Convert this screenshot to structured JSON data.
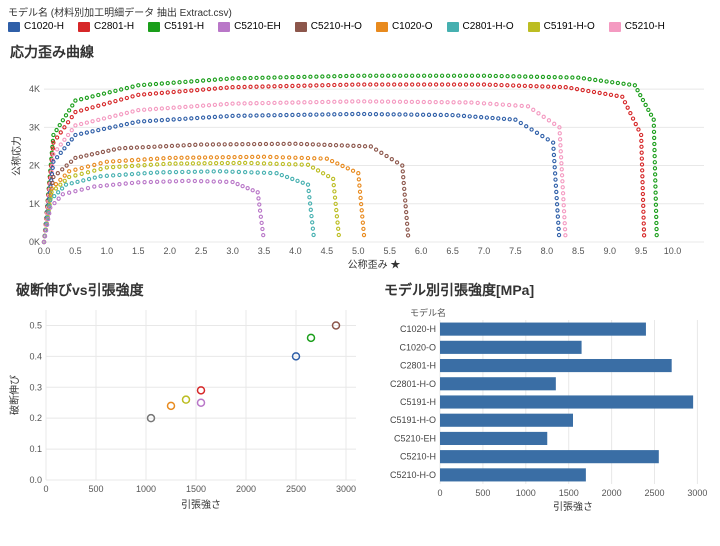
{
  "header": "モデル名 (材料別加工明細データ 抽出 Extract.csv)",
  "legend_items": [
    {
      "label": "C1020-H",
      "color": "#2f5fa8"
    },
    {
      "label": "C2801-H",
      "color": "#d62728"
    },
    {
      "label": "C5191-H",
      "color": "#1a9e1a"
    },
    {
      "label": "C5210-EH",
      "color": "#b977c8"
    },
    {
      "label": "C5210-H-O",
      "color": "#8c564b"
    },
    {
      "label": "C1020-O",
      "color": "#e88a1e"
    },
    {
      "label": "C2801-H-O",
      "color": "#46b0b0"
    },
    {
      "label": "C5191-H-O",
      "color": "#bcbd22"
    },
    {
      "label": "C5210-H",
      "color": "#f49ac1"
    }
  ],
  "stress_strain": {
    "title": "応力歪み曲線",
    "ylabel": "公称応力",
    "xlabel": "公称歪み ★",
    "xlim": [
      0,
      10.5
    ],
    "ylim": [
      0,
      4500
    ],
    "xticks": [
      0,
      0.5,
      1.0,
      1.5,
      2.0,
      2.5,
      3.0,
      3.5,
      4.0,
      4.5,
      5.0,
      5.5,
      6.0,
      6.5,
      7.0,
      7.5,
      8.0,
      8.5,
      9.0,
      9.5,
      10.0
    ],
    "yticks": [
      0,
      1000,
      2000,
      3000,
      4000
    ],
    "ytick_labels": [
      "0K",
      "1K",
      "2K",
      "3K",
      "4K"
    ],
    "series": [
      {
        "color": "#1a9e1a",
        "pts": [
          [
            0,
            0
          ],
          [
            0.15,
            2800
          ],
          [
            0.5,
            3700
          ],
          [
            1.5,
            4100
          ],
          [
            3,
            4280
          ],
          [
            5,
            4350
          ],
          [
            7,
            4350
          ],
          [
            8.5,
            4300
          ],
          [
            9.4,
            4100
          ],
          [
            9.7,
            3200
          ],
          [
            9.75,
            20
          ]
        ]
      },
      {
        "color": "#d62728",
        "pts": [
          [
            0,
            0
          ],
          [
            0.15,
            2600
          ],
          [
            0.5,
            3400
          ],
          [
            1.5,
            3850
          ],
          [
            3,
            4050
          ],
          [
            5,
            4120
          ],
          [
            7,
            4120
          ],
          [
            8.3,
            4050
          ],
          [
            9.2,
            3800
          ],
          [
            9.5,
            2800
          ],
          [
            9.55,
            20
          ]
        ]
      },
      {
        "color": "#f49ac1",
        "pts": [
          [
            0,
            0
          ],
          [
            0.15,
            2300
          ],
          [
            0.5,
            3050
          ],
          [
            1.5,
            3450
          ],
          [
            3,
            3620
          ],
          [
            5,
            3680
          ],
          [
            6.8,
            3650
          ],
          [
            7.7,
            3550
          ],
          [
            8.2,
            3000
          ],
          [
            8.3,
            20
          ]
        ]
      },
      {
        "color": "#2f5fa8",
        "pts": [
          [
            0,
            0
          ],
          [
            0.15,
            2100
          ],
          [
            0.5,
            2800
          ],
          [
            1.5,
            3150
          ],
          [
            3,
            3300
          ],
          [
            5,
            3350
          ],
          [
            6.5,
            3320
          ],
          [
            7.5,
            3200
          ],
          [
            8.1,
            2600
          ],
          [
            8.2,
            20
          ]
        ]
      },
      {
        "color": "#8c564b",
        "pts": [
          [
            0,
            0
          ],
          [
            0.15,
            1700
          ],
          [
            0.5,
            2200
          ],
          [
            1.2,
            2450
          ],
          [
            2.5,
            2550
          ],
          [
            4,
            2570
          ],
          [
            5.2,
            2500
          ],
          [
            5.7,
            2000
          ],
          [
            5.8,
            20
          ]
        ]
      },
      {
        "color": "#e88a1e",
        "pts": [
          [
            0,
            0
          ],
          [
            0.12,
            1400
          ],
          [
            0.4,
            1850
          ],
          [
            1,
            2100
          ],
          [
            2,
            2200
          ],
          [
            3.5,
            2230
          ],
          [
            4.5,
            2180
          ],
          [
            5.0,
            1800
          ],
          [
            5.1,
            20
          ]
        ]
      },
      {
        "color": "#bcbd22",
        "pts": [
          [
            0,
            0
          ],
          [
            0.12,
            1300
          ],
          [
            0.4,
            1700
          ],
          [
            1,
            1950
          ],
          [
            2,
            2050
          ],
          [
            3.2,
            2070
          ],
          [
            4.2,
            2020
          ],
          [
            4.6,
            1650
          ],
          [
            4.7,
            20
          ]
        ]
      },
      {
        "color": "#46b0b0",
        "pts": [
          [
            0,
            0
          ],
          [
            0.1,
            1100
          ],
          [
            0.35,
            1500
          ],
          [
            0.9,
            1720
          ],
          [
            1.8,
            1820
          ],
          [
            2.8,
            1850
          ],
          [
            3.7,
            1800
          ],
          [
            4.2,
            1500
          ],
          [
            4.3,
            20
          ]
        ]
      },
      {
        "color": "#b977c8",
        "pts": [
          [
            0,
            0
          ],
          [
            0.1,
            900
          ],
          [
            0.3,
            1250
          ],
          [
            0.8,
            1450
          ],
          [
            1.5,
            1560
          ],
          [
            2.3,
            1600
          ],
          [
            3.0,
            1570
          ],
          [
            3.4,
            1300
          ],
          [
            3.5,
            20
          ]
        ]
      }
    ]
  },
  "scatter": {
    "title": "破断伸びvs引張強度",
    "xlabel": "引張強さ",
    "ylabel": "破断伸び",
    "xlim": [
      0,
      3100
    ],
    "ylim": [
      0,
      0.55
    ],
    "xticks": [
      0,
      500,
      1000,
      1500,
      2000,
      2500,
      3000
    ],
    "yticks": [
      0,
      0.1,
      0.2,
      0.3,
      0.4,
      0.5
    ],
    "points": [
      {
        "x": 1050,
        "y": 0.2,
        "color": "#777"
      },
      {
        "x": 1250,
        "y": 0.24,
        "color": "#e88a1e"
      },
      {
        "x": 1400,
        "y": 0.26,
        "color": "#bcbd22"
      },
      {
        "x": 1550,
        "y": 0.29,
        "color": "#d62728"
      },
      {
        "x": 1550,
        "y": 0.25,
        "color": "#b977c8"
      },
      {
        "x": 2500,
        "y": 0.4,
        "color": "#2f5fa8"
      },
      {
        "x": 2650,
        "y": 0.46,
        "color": "#1a9e1a"
      },
      {
        "x": 2900,
        "y": 0.5,
        "color": "#8c564b"
      }
    ]
  },
  "bars": {
    "title": "モデル別引張強度[MPa]",
    "sublabel": "モデル名",
    "xlabel": "引張強さ",
    "xlim": [
      0,
      3100
    ],
    "xticks": [
      0,
      500,
      1000,
      1500,
      2000,
      2500,
      3000
    ],
    "items": [
      {
        "label": "C1020-H",
        "val": 2400
      },
      {
        "label": "C1020-O",
        "val": 1650
      },
      {
        "label": "C2801-H",
        "val": 2700
      },
      {
        "label": "C2801-H-O",
        "val": 1350
      },
      {
        "label": "C5191-H",
        "val": 2950
      },
      {
        "label": "C5191-H-O",
        "val": 1550
      },
      {
        "label": "C5210-EH",
        "val": 1250
      },
      {
        "label": "C5210-H",
        "val": 2550
      },
      {
        "label": "C5210-H-O",
        "val": 1700
      }
    ]
  }
}
